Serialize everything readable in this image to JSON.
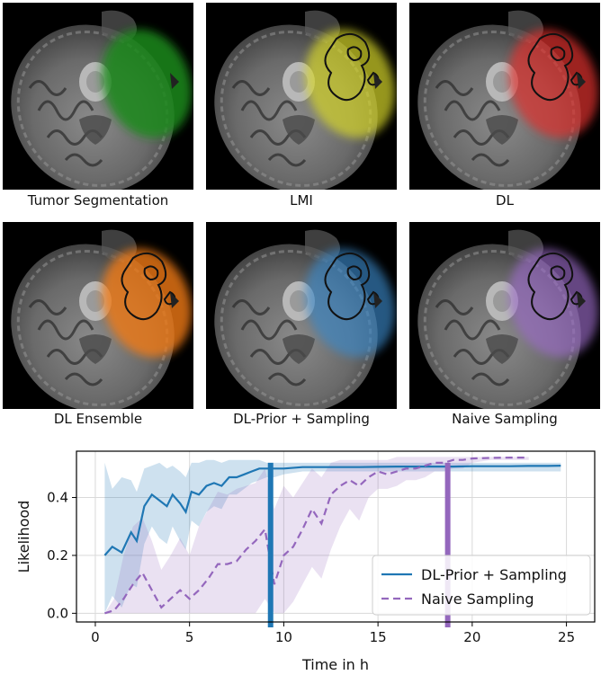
{
  "panels": [
    {
      "caption": "Tumor Segmentation",
      "overlay": "#1f8a1f",
      "outline": false,
      "opacity": 0.85
    },
    {
      "caption": "LMI",
      "overlay": "#d6d62a",
      "outline": true,
      "opacity": 0.7
    },
    {
      "caption": "DL",
      "overlay": "#e0302f",
      "outline": true,
      "opacity": 0.7
    },
    {
      "caption": "DL Ensemble",
      "overlay": "#f07a18",
      "outline": true,
      "opacity": 0.8
    },
    {
      "caption": "DL-Prior + Sampling",
      "overlay": "#3a88c8",
      "outline": true,
      "opacity": 0.65
    },
    {
      "caption": "Naive Sampling",
      "overlay": "#9b6cc8",
      "outline": true,
      "opacity": 0.65
    }
  ],
  "chart_data": {
    "type": "line",
    "xlabel": "Time in h",
    "ylabel": "Likelihood",
    "xlim": [
      -1,
      26.5
    ],
    "ylim": [
      -0.03,
      0.56
    ],
    "xticks": [
      0,
      5,
      10,
      15,
      20,
      25
    ],
    "yticks": [
      0.0,
      0.2,
      0.4
    ],
    "ytick_labels": [
      "0.0",
      "0.2",
      "0.4"
    ],
    "grid": true,
    "legend_position": "lower-right",
    "series": [
      {
        "name": "DL-Prior + Sampling",
        "color": "#1f77b4",
        "dash": "solid",
        "x": [
          0.5,
          0.9,
          1.4,
          1.9,
          2.2,
          2.6,
          3.0,
          3.4,
          3.8,
          4.1,
          4.5,
          4.8,
          5.1,
          5.5,
          5.9,
          6.3,
          6.7,
          7.1,
          7.5,
          7.9,
          8.3,
          8.7,
          9.1,
          9.5,
          10,
          11,
          12,
          13,
          14,
          15,
          16,
          17,
          18,
          19,
          20,
          21,
          22,
          23,
          24,
          24.7
        ],
        "y": [
          0.2,
          0.23,
          0.21,
          0.28,
          0.25,
          0.37,
          0.41,
          0.39,
          0.37,
          0.41,
          0.38,
          0.35,
          0.42,
          0.41,
          0.44,
          0.45,
          0.44,
          0.47,
          0.47,
          0.48,
          0.49,
          0.5,
          0.5,
          0.5,
          0.5,
          0.505,
          0.505,
          0.505,
          0.505,
          0.506,
          0.507,
          0.507,
          0.507,
          0.507,
          0.508,
          0.508,
          0.508,
          0.509,
          0.509,
          0.51
        ],
        "band_upper": [
          0.52,
          0.43,
          0.47,
          0.46,
          0.42,
          0.5,
          0.51,
          0.52,
          0.5,
          0.51,
          0.49,
          0.47,
          0.52,
          0.52,
          0.53,
          0.53,
          0.52,
          0.53,
          0.53,
          0.53,
          0.53,
          0.53,
          0.52,
          0.52,
          0.52,
          0.52,
          0.52,
          0.52,
          0.52,
          0.52,
          0.52,
          0.52,
          0.52,
          0.52,
          0.52,
          0.52,
          0.52,
          0.52,
          0.52,
          0.52
        ],
        "band_lower": [
          0.0,
          0.06,
          0.02,
          0.1,
          0.09,
          0.24,
          0.3,
          0.26,
          0.24,
          0.3,
          0.25,
          0.22,
          0.32,
          0.3,
          0.35,
          0.37,
          0.36,
          0.41,
          0.41,
          0.43,
          0.45,
          0.46,
          0.47,
          0.47,
          0.48,
          0.49,
          0.49,
          0.49,
          0.49,
          0.49,
          0.49,
          0.49,
          0.49,
          0.49,
          0.49,
          0.49,
          0.49,
          0.49,
          0.49,
          0.49
        ]
      },
      {
        "name": "Naive Sampling",
        "color": "#9467bd",
        "dash": "dashed",
        "x": [
          0.5,
          1.0,
          1.5,
          2.0,
          2.5,
          3.0,
          3.5,
          4.0,
          4.5,
          5.0,
          5.5,
          6.0,
          6.5,
          7.0,
          7.5,
          8.0,
          8.5,
          9.0,
          9.5,
          10.0,
          10.5,
          11.0,
          11.5,
          12.0,
          12.5,
          13.0,
          13.5,
          14.0,
          14.5,
          15.0,
          15.5,
          16.0,
          16.5,
          17.0,
          17.5,
          18.0,
          18.5,
          19.0,
          19.5,
          20.0,
          21.0,
          22.0,
          23.0
        ],
        "y": [
          0.0,
          0.01,
          0.05,
          0.1,
          0.14,
          0.08,
          0.02,
          0.05,
          0.08,
          0.05,
          0.08,
          0.12,
          0.17,
          0.17,
          0.18,
          0.22,
          0.25,
          0.29,
          0.1,
          0.2,
          0.23,
          0.29,
          0.36,
          0.31,
          0.41,
          0.44,
          0.46,
          0.44,
          0.47,
          0.49,
          0.48,
          0.49,
          0.5,
          0.5,
          0.51,
          0.52,
          0.52,
          0.53,
          0.53,
          0.535,
          0.537,
          0.538,
          0.538
        ],
        "band_upper": [
          0.0,
          0.05,
          0.2,
          0.3,
          0.33,
          0.25,
          0.15,
          0.2,
          0.26,
          0.2,
          0.3,
          0.36,
          0.42,
          0.41,
          0.43,
          0.44,
          0.45,
          0.5,
          0.36,
          0.44,
          0.4,
          0.45,
          0.5,
          0.47,
          0.52,
          0.53,
          0.53,
          0.53,
          0.53,
          0.53,
          0.53,
          0.54,
          0.54,
          0.54,
          0.54,
          0.54,
          0.54,
          0.54,
          0.54,
          0.54,
          0.54,
          0.54,
          0.54
        ],
        "band_lower": [
          0.0,
          0.0,
          0.0,
          0.0,
          0.0,
          0.0,
          0.0,
          0.0,
          0.0,
          0.0,
          0.0,
          0.0,
          0.0,
          0.0,
          0.0,
          0.0,
          0.0,
          0.05,
          0.0,
          0.0,
          0.04,
          0.1,
          0.16,
          0.12,
          0.22,
          0.3,
          0.36,
          0.32,
          0.4,
          0.43,
          0.43,
          0.44,
          0.46,
          0.46,
          0.47,
          0.49,
          0.49,
          0.5,
          0.5,
          0.52,
          0.53,
          0.53,
          0.53
        ]
      }
    ],
    "vlines": [
      {
        "x": 9.3,
        "color": "#1f77b4"
      },
      {
        "x": 18.7,
        "color": "#9467bd"
      }
    ]
  }
}
